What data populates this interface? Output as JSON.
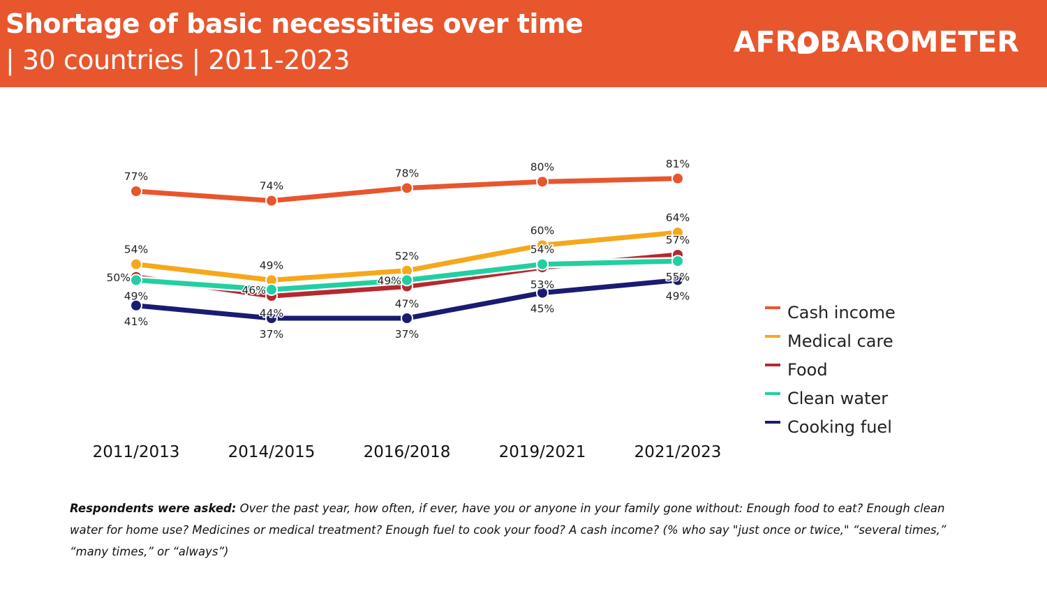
{
  "header": {
    "title": "Shortage of basic necessities over time",
    "subtitle": "| 30 countries | 2011-2023",
    "logo_text_left": "AFR",
    "logo_icon": "africa-globe-speech-bubble-icon",
    "logo_text_right": "BAROMETER",
    "background_color": "#e8562d"
  },
  "chart_data": {
    "type": "line",
    "title": "Shortage of basic necessities over time",
    "subtitle": "| 30 countries | 2011-2023",
    "xlabel": "",
    "ylabel": "",
    "categories": [
      "2011/2013",
      "2014/2015",
      "2016/2018",
      "2019/2021",
      "2021/2023"
    ],
    "ylim": [
      0,
      100
    ],
    "grid": false,
    "legend_position": "right",
    "value_format": "percent",
    "series": [
      {
        "name": "Cash income",
        "color": "#e8562d",
        "values": [
          77,
          74,
          78,
          80,
          81
        ]
      },
      {
        "name": "Medical care",
        "color": "#f5a81c",
        "values": [
          54,
          49,
          52,
          60,
          64
        ]
      },
      {
        "name": "Food",
        "color": "#b5292e",
        "values": [
          50,
          44,
          47,
          53,
          57
        ]
      },
      {
        "name": "Clean water",
        "color": "#22cfa0",
        "values": [
          49,
          46,
          49,
          54,
          55
        ]
      },
      {
        "name": "Cooking fuel",
        "color": "#1b1b72",
        "values": [
          41,
          37,
          37,
          45,
          49
        ]
      }
    ]
  },
  "footnote": {
    "lead": "Respondents were asked:",
    "text": " Over the past year, how often, if ever, have you or anyone in your family gone without: Enough food to eat? Enough clean water for home use? Medicines or medical treatment? Enough fuel to cook your food? A cash income? (% who say \"just once or twice,\" “several times,” “many times,” or “always”)"
  }
}
